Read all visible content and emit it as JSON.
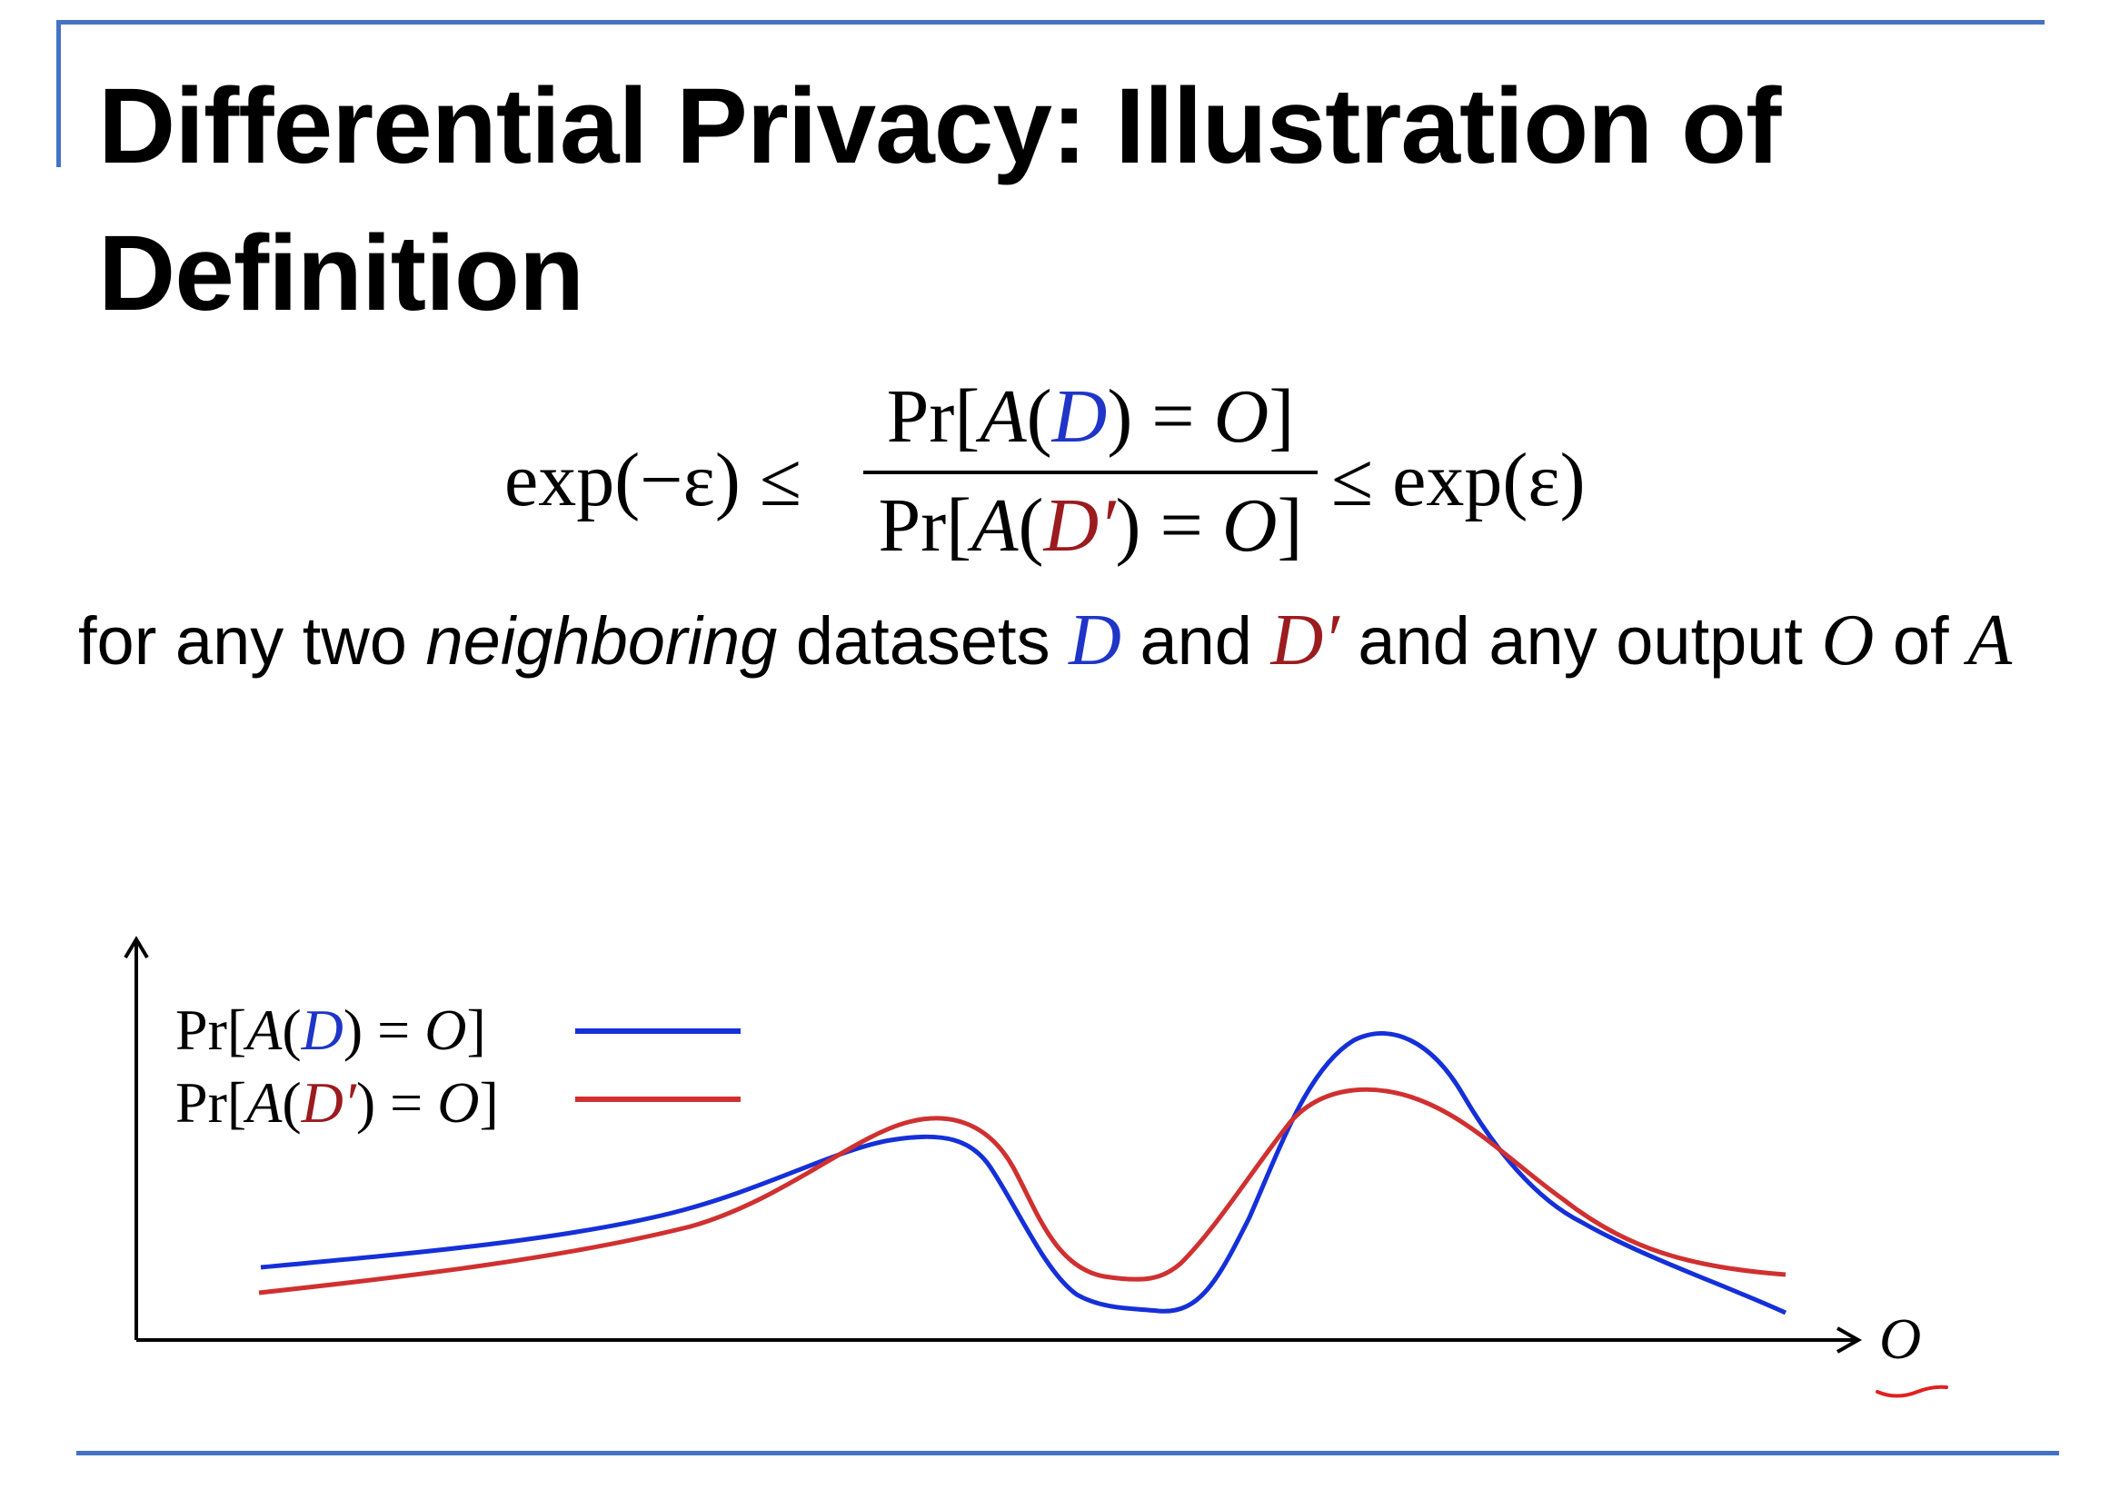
{
  "title": "Differential Privacy: Illustration of Definition",
  "colors": {
    "accent_rule": "#4472c4",
    "d_color": "#1f35c8",
    "dprime_color": "#9b1b1f",
    "curve_d": "#1530d8",
    "curve_dprime": "#d03030"
  },
  "formula": {
    "lhs": "exp(−ε) ≤",
    "num_pre": "Pr[",
    "num_a": "A",
    "num_paren_open": "(",
    "num_d": "D",
    "num_post": ") = ",
    "num_o": "O",
    "num_close": "]",
    "den_pre": "Pr[",
    "den_a": "A",
    "den_paren_open": "(",
    "den_d": "D′",
    "den_post": ") = ",
    "den_o": "O",
    "den_close": "]",
    "rhs": "≤ exp(ε)"
  },
  "sentence": {
    "part1": "for any two ",
    "emphasis": "neighboring",
    "part2": " datasets ",
    "d": "D",
    "part3": " and ",
    "dprime": "D′",
    "part4": " and any output ",
    "o": "O",
    "part5": " of ",
    "a": "A"
  },
  "chart": {
    "x_label": "O",
    "legend": [
      {
        "pre": "Pr[",
        "a": "A",
        "open": "(",
        "var": "D",
        "post": ") = ",
        "o": "O",
        "close": "]"
      },
      {
        "pre": "Pr[",
        "a": "A",
        "open": "(",
        "var": "D′",
        "post": ") = ",
        "o": "O",
        "close": "]"
      }
    ]
  }
}
